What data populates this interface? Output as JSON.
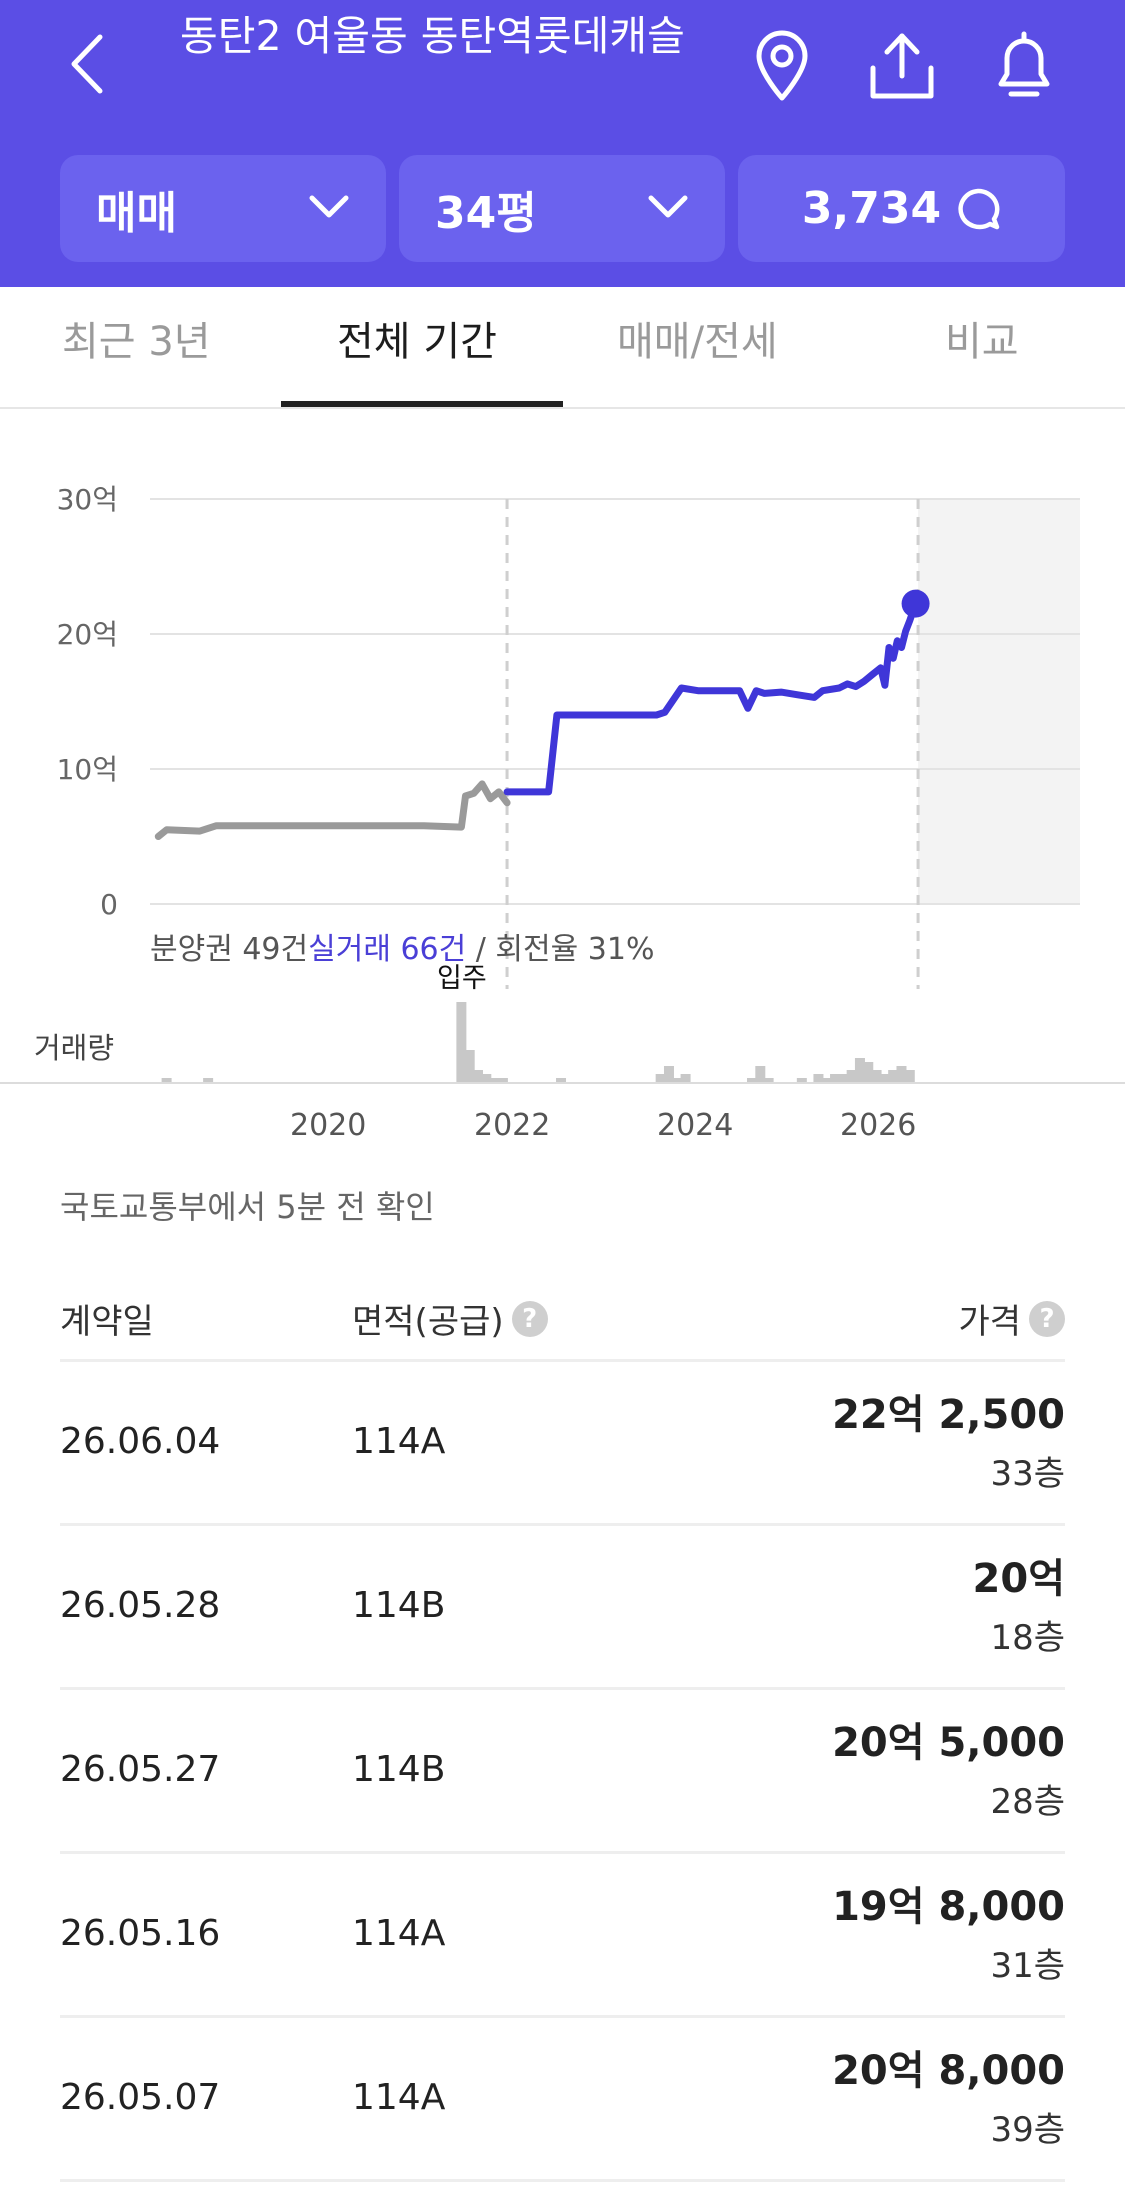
{
  "header": {
    "title": "동탄2 여울동 동탄역롯데캐슬",
    "icons": [
      "back-chevron-icon",
      "location-pin-icon",
      "share-icon",
      "bell-icon"
    ],
    "filters": {
      "trade_type": "매매",
      "size": "34평",
      "comment_count": "3,734"
    },
    "bg_color": "#5b4ee5"
  },
  "tabs": [
    {
      "label": "최근 3년",
      "active": false
    },
    {
      "label": "전체 기간",
      "active": true
    },
    {
      "label": "매매/전세",
      "active": false
    },
    {
      "label": "비교",
      "active": false
    }
  ],
  "chart_data": {
    "type": "line",
    "ytick_labels": [
      "30억",
      "20억",
      "10억",
      "0"
    ],
    "ylim": [
      0,
      30
    ],
    "xlim": [
      2017.2,
      2028.4
    ],
    "xtick_labels": [
      "2020",
      "2022",
      "2024",
      "2026"
    ],
    "xtick_values": [
      2020,
      2022,
      2024,
      2026
    ],
    "move_in_label": "입주",
    "move_in_x": 2021.5,
    "forecast_start_x": 2026.45,
    "series": [
      {
        "color": "#9a9a9a",
        "x": [
          2017.3,
          2017.4,
          2017.8,
          2018.0,
          2018.6,
          2019.5,
          2020.5,
          2020.95,
          2021.0,
          2021.1,
          2021.2,
          2021.3,
          2021.4,
          2021.5
        ],
        "y": [
          5.0,
          5.5,
          5.4,
          5.8,
          5.8,
          5.8,
          5.8,
          5.7,
          8.0,
          8.2,
          8.9,
          7.8,
          8.3,
          7.5
        ]
      },
      {
        "color": "#3f36d8",
        "x": [
          2021.5,
          2021.7,
          2022.0,
          2022.1,
          2022.3,
          2022.8,
          2023.3,
          2023.4,
          2023.6,
          2023.8,
          2024.3,
          2024.4,
          2024.5,
          2024.6,
          2024.8,
          2025.0,
          2025.2,
          2025.3,
          2025.5,
          2025.6,
          2025.7,
          2025.8,
          2025.9,
          2026.0,
          2026.05,
          2026.1,
          2026.15,
          2026.2,
          2026.25,
          2026.3,
          2026.35,
          2026.42
        ],
        "y": [
          8.3,
          8.3,
          8.3,
          14.0,
          14.0,
          14.0,
          14.0,
          14.2,
          16.0,
          15.8,
          15.8,
          14.5,
          15.8,
          15.6,
          15.7,
          15.5,
          15.3,
          15.8,
          16.0,
          16.3,
          16.1,
          16.5,
          17.0,
          17.5,
          16.2,
          19.0,
          18.2,
          19.5,
          19.0,
          20.2,
          21.0,
          22.25
        ]
      }
    ],
    "last_point": {
      "x": 2026.42,
      "y": 22.25
    },
    "note_prefix": "분양권 49건",
    "note_highlight": "실거래 66건",
    "note_suffix": " / 회전율 31%",
    "volume_label": "거래량",
    "volume": {
      "x": [
        2017.4,
        2017.9,
        2020.95,
        2021.05,
        2021.15,
        2021.25,
        2021.35,
        2021.45,
        2022.15,
        2023.35,
        2023.45,
        2023.55,
        2023.65,
        2024.45,
        2024.55,
        2024.65,
        2025.05,
        2025.25,
        2025.35,
        2025.45,
        2025.55,
        2025.65,
        2025.75,
        2025.85,
        2025.95,
        2026.05,
        2026.15,
        2026.25,
        2026.35
      ],
      "v": [
        1,
        1,
        20,
        8,
        3,
        2,
        1,
        1,
        1,
        2,
        4,
        1,
        2,
        1,
        4,
        1,
        1,
        2,
        1,
        2,
        2,
        3,
        6,
        5,
        3,
        2,
        3,
        4,
        3
      ]
    }
  },
  "source_text": "국토교통부에서 5분 전 확인",
  "table": {
    "headers": {
      "date": "계약일",
      "area": "면적(공급)",
      "price": "가격"
    },
    "rows": [
      {
        "date": "26.06.04",
        "area": "114A",
        "price": "22억 2,500",
        "floor": "33층"
      },
      {
        "date": "26.05.28",
        "area": "114B",
        "price": "20억",
        "floor": "18층"
      },
      {
        "date": "26.05.27",
        "area": "114B",
        "price": "20억 5,000",
        "floor": "28층"
      },
      {
        "date": "26.05.16",
        "area": "114A",
        "price": "19억 8,000",
        "floor": "31층"
      },
      {
        "date": "26.05.07",
        "area": "114A",
        "price": "20억 8,000",
        "floor": "39층"
      }
    ]
  }
}
